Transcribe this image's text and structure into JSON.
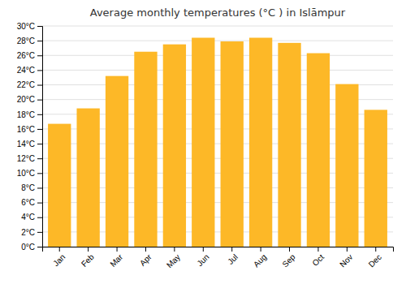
{
  "chart_data": {
    "type": "bar",
    "title": "Average monthly temperatures (°C ) in Islāmpur",
    "categories": [
      "Jan",
      "Feb",
      "Mar",
      "Apr",
      "May",
      "Jun",
      "Jul",
      "Aug",
      "Sep",
      "Oct",
      "Nov",
      "Dec"
    ],
    "values": [
      16.7,
      18.8,
      23.2,
      26.5,
      27.5,
      28.4,
      27.9,
      28.4,
      27.7,
      26.3,
      22.1,
      18.6
    ],
    "color": "#FDB827",
    "ylim": [
      0,
      30
    ],
    "yticks": [
      {
        "value": 0,
        "label": "0°C"
      },
      {
        "value": 2,
        "label": "2°C"
      },
      {
        "value": 4,
        "label": "4°C"
      },
      {
        "value": 6,
        "label": "6°C"
      },
      {
        "value": 8,
        "label": "8°C"
      },
      {
        "value": 10,
        "label": "10°C"
      },
      {
        "value": 12,
        "label": "12°C"
      },
      {
        "value": 14,
        "label": "14°C"
      },
      {
        "value": 16,
        "label": "16°C"
      },
      {
        "value": 18,
        "label": "18°C"
      },
      {
        "value": 20,
        "label": "20°C"
      },
      {
        "value": 22,
        "label": "22°C"
      },
      {
        "value": 24,
        "label": "24°C"
      },
      {
        "value": 26,
        "label": "26°C"
      },
      {
        "value": 28,
        "label": "28°C"
      },
      {
        "value": 30,
        "label": "30°C"
      }
    ],
    "grid": true
  }
}
